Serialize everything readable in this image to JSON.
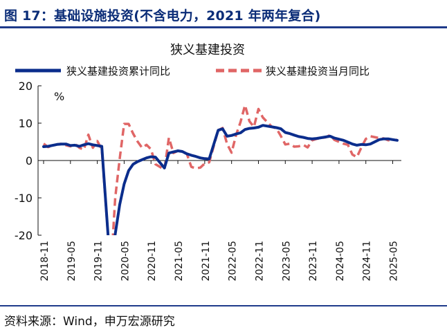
{
  "figure": {
    "title": "图 17：基础设施投资(不含电力，2021 年两年复合)",
    "source": "资料来源：Wind，申万宏源研究"
  },
  "chart_data": {
    "type": "line",
    "title": "狭义基建投资",
    "ylabel": "%",
    "ylim": [
      -20,
      20
    ],
    "yticks": [
      20,
      10,
      0,
      -10,
      -20
    ],
    "xlabel": "",
    "x_tick_labels": [
      "2018-11",
      "2019-05",
      "2019-11",
      "2020-05",
      "2020-11",
      "2021-05",
      "2021-11",
      "2022-05",
      "2022-11",
      "2023-05",
      "2023-11",
      "2024-05",
      "2024-11",
      "2025-05"
    ],
    "x_range": [
      "2018-11",
      "2025-06"
    ],
    "legend_position": "top",
    "grid": false,
    "series": [
      {
        "name": "狭义基建投资累计同比",
        "color": "#0B2D8C",
        "style": "solid",
        "points": [
          [
            "2018-11",
            3.7
          ],
          [
            "2018-12",
            3.8
          ],
          [
            "2019-02",
            4.3
          ],
          [
            "2019-03",
            4.4
          ],
          [
            "2019-04",
            4.4
          ],
          [
            "2019-05",
            4.0
          ],
          [
            "2019-06",
            4.1
          ],
          [
            "2019-07",
            3.8
          ],
          [
            "2019-08",
            4.2
          ],
          [
            "2019-09",
            4.5
          ],
          [
            "2019-10",
            4.2
          ],
          [
            "2019-11",
            4.0
          ],
          [
            "2019-12",
            3.8
          ],
          [
            "2020-02",
            -30.0
          ],
          [
            "2020-03",
            -19.7
          ],
          [
            "2020-04",
            -11.8
          ],
          [
            "2020-05",
            -6.3
          ],
          [
            "2020-06",
            -2.7
          ],
          [
            "2020-07",
            -1.0
          ],
          [
            "2020-08",
            -0.3
          ],
          [
            "2020-09",
            0.2
          ],
          [
            "2020-10",
            0.7
          ],
          [
            "2020-11",
            1.0
          ],
          [
            "2020-12",
            0.9
          ],
          [
            "2021-02",
            -2.0
          ],
          [
            "2021-03",
            2.0
          ],
          [
            "2021-04",
            2.3
          ],
          [
            "2021-05",
            2.6
          ],
          [
            "2021-06",
            2.4
          ],
          [
            "2021-07",
            1.8
          ],
          [
            "2021-08",
            1.4
          ],
          [
            "2021-09",
            1.1
          ],
          [
            "2021-10",
            0.7
          ],
          [
            "2021-11",
            0.5
          ],
          [
            "2021-12",
            0.4
          ],
          [
            "2022-02",
            8.1
          ],
          [
            "2022-03",
            8.5
          ],
          [
            "2022-04",
            6.5
          ],
          [
            "2022-05",
            6.7
          ],
          [
            "2022-06",
            7.1
          ],
          [
            "2022-07",
            7.4
          ],
          [
            "2022-08",
            8.3
          ],
          [
            "2022-09",
            8.6
          ],
          [
            "2022-10",
            8.7
          ],
          [
            "2022-11",
            8.9
          ],
          [
            "2022-12",
            9.4
          ],
          [
            "2023-02",
            9.0
          ],
          [
            "2023-03",
            8.8
          ],
          [
            "2023-04",
            8.5
          ],
          [
            "2023-05",
            7.5
          ],
          [
            "2023-06",
            7.2
          ],
          [
            "2023-07",
            6.8
          ],
          [
            "2023-08",
            6.4
          ],
          [
            "2023-09",
            6.2
          ],
          [
            "2023-10",
            5.9
          ],
          [
            "2023-11",
            5.8
          ],
          [
            "2023-12",
            5.9
          ],
          [
            "2024-02",
            6.3
          ],
          [
            "2024-03",
            6.5
          ],
          [
            "2024-04",
            6.0
          ],
          [
            "2024-05",
            5.7
          ],
          [
            "2024-06",
            5.4
          ],
          [
            "2024-07",
            4.9
          ],
          [
            "2024-08",
            4.4
          ],
          [
            "2024-09",
            4.1
          ],
          [
            "2024-10",
            4.3
          ],
          [
            "2024-11",
            4.2
          ],
          [
            "2024-12",
            4.4
          ],
          [
            "2025-02",
            5.6
          ],
          [
            "2025-03",
            5.8
          ],
          [
            "2025-04",
            5.8
          ],
          [
            "2025-05",
            5.6
          ],
          [
            "2025-06",
            5.4
          ]
        ]
      },
      {
        "name": "狭义基建投资当月同比",
        "color": "#E06666",
        "style": "dashed",
        "points": [
          [
            "2018-11",
            4.5
          ],
          [
            "2018-12",
            3.6
          ],
          [
            "2019-02",
            4.3
          ],
          [
            "2019-03",
            4.5
          ],
          [
            "2019-04",
            4.1
          ],
          [
            "2019-05",
            3.8
          ],
          [
            "2019-06",
            4.5
          ],
          [
            "2019-07",
            3.4
          ],
          [
            "2019-08",
            2.9
          ],
          [
            "2019-09",
            6.9
          ],
          [
            "2019-10",
            3.4
          ],
          [
            "2019-11",
            5.2
          ],
          [
            "2019-12",
            3.0
          ],
          [
            "2020-02",
            -30.0
          ],
          [
            "2020-03",
            -10.0
          ],
          [
            "2020-04",
            0.5
          ],
          [
            "2020-05",
            9.8
          ],
          [
            "2020-06",
            9.8
          ],
          [
            "2020-07",
            7.2
          ],
          [
            "2020-08",
            5.1
          ],
          [
            "2020-09",
            3.4
          ],
          [
            "2020-10",
            4.2
          ],
          [
            "2020-11",
            3.0
          ],
          [
            "2020-12",
            -1.0
          ],
          [
            "2021-02",
            -2.4
          ],
          [
            "2021-03",
            6.1
          ],
          [
            "2021-04",
            2.0
          ],
          [
            "2021-05",
            2.6
          ],
          [
            "2021-06",
            2.3
          ],
          [
            "2021-07",
            1.8
          ],
          [
            "2021-08",
            -1.7
          ],
          [
            "2021-09",
            -2.1
          ],
          [
            "2021-10",
            -1.9
          ],
          [
            "2021-11",
            -0.8
          ],
          [
            "2021-12",
            -0.5
          ],
          [
            "2022-02",
            8.1
          ],
          [
            "2022-03",
            8.7
          ],
          [
            "2022-04",
            4.4
          ],
          [
            "2022-05",
            2.1
          ],
          [
            "2022-06",
            6.8
          ],
          [
            "2022-07",
            10.3
          ],
          [
            "2022-08",
            14.8
          ],
          [
            "2022-09",
            10.5
          ],
          [
            "2022-10",
            9.0
          ],
          [
            "2022-11",
            13.8
          ],
          [
            "2022-12",
            11.5
          ],
          [
            "2023-02",
            9.0
          ],
          [
            "2023-03",
            8.6
          ],
          [
            "2023-04",
            6.6
          ],
          [
            "2023-05",
            4.3
          ],
          [
            "2023-06",
            4.5
          ],
          [
            "2023-07",
            3.7
          ],
          [
            "2023-08",
            3.8
          ],
          [
            "2023-09",
            4.2
          ],
          [
            "2023-10",
            3.5
          ],
          [
            "2023-11",
            5.4
          ],
          [
            "2023-12",
            5.8
          ],
          [
            "2024-02",
            6.2
          ],
          [
            "2024-03",
            6.8
          ],
          [
            "2024-04",
            5.5
          ],
          [
            "2024-05",
            5.0
          ],
          [
            "2024-06",
            4.5
          ],
          [
            "2024-07",
            4.2
          ],
          [
            "2024-08",
            1.6
          ],
          [
            "2024-09",
            0.9
          ],
          [
            "2024-10",
            3.5
          ],
          [
            "2024-11",
            5.8
          ],
          [
            "2024-12",
            6.5
          ],
          [
            "2025-02",
            6.0
          ],
          [
            "2025-03",
            5.9
          ],
          [
            "2025-04",
            5.4
          ],
          [
            "2025-05",
            5.5
          ],
          [
            "2025-06",
            5.5
          ]
        ]
      }
    ]
  }
}
